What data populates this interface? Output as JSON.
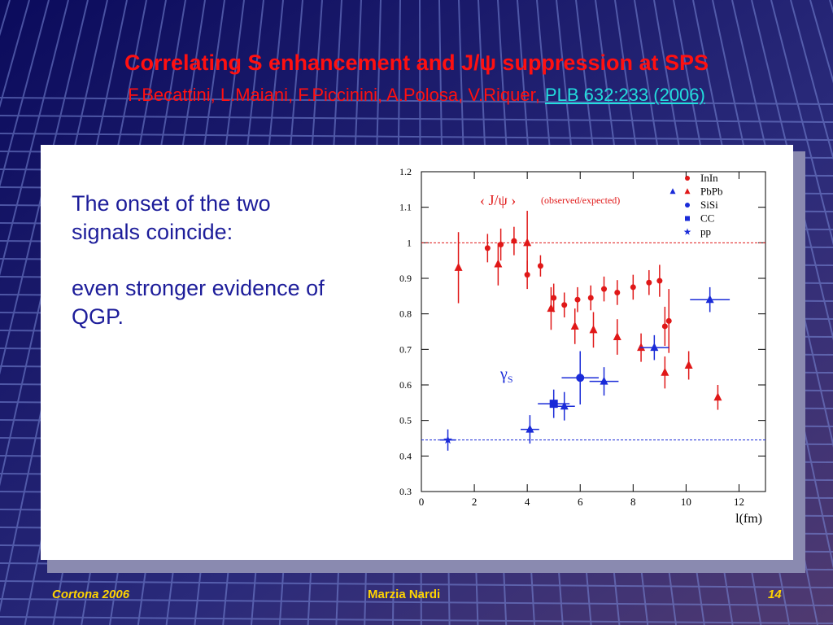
{
  "header": {
    "title": "Correlating S enhancement and J/ψ suppression at SPS",
    "authors": "F.Becattini, L.Maiani, F.Piccinini, A.Polosa, V.Riquer, ",
    "reference": "PLB 632:233 (2006)"
  },
  "bullets": [
    "The onset of the two signals coincide:",
    "even stronger evidence of QGP."
  ],
  "footer": {
    "left": "Cortona 2006",
    "center": "Marzia Nardi",
    "right": "14"
  },
  "colors": {
    "red": "#e01818",
    "blue": "#1a2bd8",
    "text_blue": "#1d1d9a",
    "footer": "#ffd400"
  },
  "chart_data": {
    "type": "scatter",
    "xlabel": "l(fm)",
    "xlim": [
      0,
      13
    ],
    "ylim": [
      0.3,
      1.2
    ],
    "x_ticks": [
      0,
      2,
      4,
      6,
      8,
      10,
      12
    ],
    "y_ticks": [
      0.3,
      0.4,
      0.5,
      0.6,
      0.7,
      0.8,
      0.9,
      1,
      1.1,
      1.2
    ],
    "annotations": {
      "jpsi_label": "‹ J/ψ ›",
      "jpsi_note": "(observed/expected)",
      "gamma_label": "γ",
      "gamma_sub": "S"
    },
    "reference_lines": [
      {
        "y": 1.0,
        "color": "#e01818"
      },
      {
        "y": 0.445,
        "color": "#1a2bd8"
      }
    ],
    "legend": [
      "InIn",
      "PbPb",
      "SiSi",
      "CC",
      "pp"
    ],
    "series": [
      {
        "group": "jpsi",
        "name": "InIn",
        "marker": "circle",
        "color": "#e01818",
        "points": [
          {
            "x": 2.5,
            "y": 0.985,
            "ey": 0.04
          },
          {
            "x": 3.0,
            "y": 0.995,
            "ey": 0.045
          },
          {
            "x": 3.5,
            "y": 1.005,
            "ey": 0.04
          },
          {
            "x": 4.0,
            "y": 0.91,
            "ey": 0.04
          },
          {
            "x": 4.5,
            "y": 0.935,
            "ey": 0.03
          },
          {
            "x": 5.0,
            "y": 0.845,
            "ey": 0.04
          },
          {
            "x": 5.4,
            "y": 0.825,
            "ey": 0.035
          },
          {
            "x": 5.9,
            "y": 0.84,
            "ey": 0.035
          },
          {
            "x": 6.4,
            "y": 0.845,
            "ey": 0.035
          },
          {
            "x": 6.9,
            "y": 0.87,
            "ey": 0.035
          },
          {
            "x": 7.4,
            "y": 0.86,
            "ey": 0.035
          },
          {
            "x": 8.0,
            "y": 0.875,
            "ey": 0.035
          },
          {
            "x": 8.6,
            "y": 0.888,
            "ey": 0.035
          },
          {
            "x": 9.0,
            "y": 0.893,
            "ey": 0.045
          },
          {
            "x": 9.2,
            "y": 0.765,
            "ey": 0.055
          },
          {
            "x": 9.35,
            "y": 0.78,
            "ey": 0.09
          }
        ]
      },
      {
        "group": "jpsi",
        "name": "PbPb",
        "marker": "triangle",
        "color": "#e01818",
        "points": [
          {
            "x": 1.4,
            "y": 0.93,
            "ey": 0.1
          },
          {
            "x": 2.9,
            "y": 0.94,
            "ey": 0.06
          },
          {
            "x": 4.0,
            "y": 1.0,
            "ey": 0.09
          },
          {
            "x": 4.9,
            "y": 0.815,
            "ey": 0.06
          },
          {
            "x": 5.8,
            "y": 0.765,
            "ey": 0.05
          },
          {
            "x": 6.5,
            "y": 0.755,
            "ey": 0.05
          },
          {
            "x": 7.4,
            "y": 0.735,
            "ey": 0.05
          },
          {
            "x": 8.3,
            "y": 0.705,
            "ey": 0.04
          },
          {
            "x": 9.2,
            "y": 0.635,
            "ey": 0.045
          },
          {
            "x": 10.1,
            "y": 0.655,
            "ey": 0.04
          },
          {
            "x": 11.2,
            "y": 0.565,
            "ey": 0.035
          }
        ]
      },
      {
        "group": "gamma_s",
        "name": "PbPb",
        "marker": "triangle",
        "color": "#1a2bd8",
        "points": [
          {
            "x": 4.1,
            "y": 0.475,
            "ex": 0.35,
            "ey": 0.04
          },
          {
            "x": 5.4,
            "y": 0.54,
            "ex": 0.4,
            "ey": 0.04
          },
          {
            "x": 6.9,
            "y": 0.61,
            "ex": 0.55,
            "ey": 0.04
          },
          {
            "x": 8.8,
            "y": 0.705,
            "ex": 0.55,
            "ey": 0.035
          },
          {
            "x": 10.9,
            "y": 0.84,
            "ex": 0.75,
            "ey": 0.035
          }
        ]
      },
      {
        "group": "gamma_s",
        "name": "SiSi",
        "marker": "circle",
        "color": "#1a2bd8",
        "points": [
          {
            "x": 6.0,
            "y": 0.62,
            "ex": 0.7,
            "ey": 0.075
          }
        ]
      },
      {
        "group": "gamma_s",
        "name": "CC",
        "marker": "square",
        "color": "#1a2bd8",
        "points": [
          {
            "x": 5.0,
            "y": 0.547,
            "ex": 0.6,
            "ey": 0.04
          }
        ]
      },
      {
        "group": "gamma_s",
        "name": "pp",
        "marker": "star",
        "color": "#1a2bd8",
        "points": [
          {
            "x": 1.0,
            "y": 0.445,
            "ex": 0.3,
            "ey": 0.03
          }
        ]
      }
    ]
  }
}
